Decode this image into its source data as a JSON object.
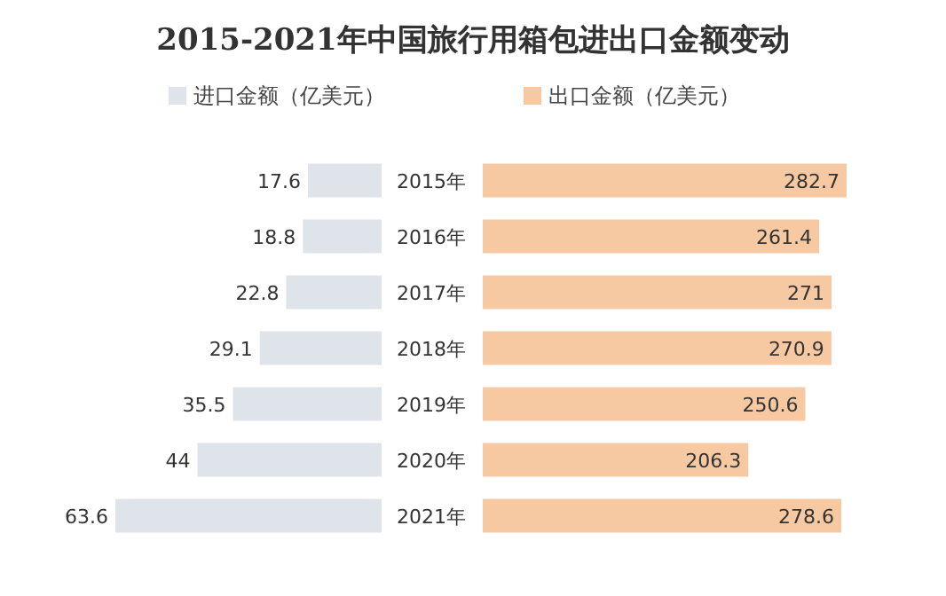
{
  "chart_data": [
    {
      "type": "bar",
      "orientation": "horizontal",
      "title": "2015-2021年中国旅行用箱包进出口金额变动",
      "categories": [
        "2015年",
        "2016年",
        "2017年",
        "2018年",
        "2019年",
        "2020年",
        "2021年"
      ],
      "series": [
        {
          "name": "进口金额（亿美元）",
          "color": "#dfe3ea",
          "values": [
            17.6,
            18.8,
            22.8,
            29.1,
            35.5,
            44,
            63.6
          ]
        }
      ],
      "data_labels": true,
      "legend": "top"
    },
    {
      "type": "bar",
      "orientation": "horizontal",
      "categories": [
        null,
        null,
        null,
        null,
        null,
        null,
        null
      ],
      "series": [
        {
          "name": "出口金额（亿美元）",
          "color": "#f6c9a3",
          "values": [
            282.7,
            261.4,
            271,
            270.9,
            250.6,
            206.3,
            278.6
          ]
        }
      ],
      "data_labels": true,
      "legend": "top"
    }
  ]
}
